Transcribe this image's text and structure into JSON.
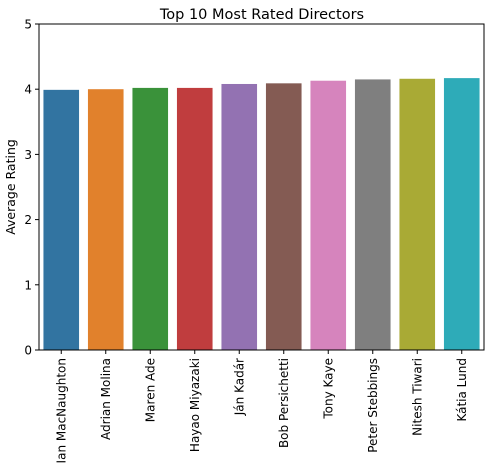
{
  "chart_data": {
    "type": "bar",
    "title": "Top 10 Most Rated Directors",
    "xlabel": "",
    "ylabel": "Average Rating",
    "ylim": [
      0,
      5
    ],
    "yticks": [
      0,
      1,
      2,
      3,
      4,
      5
    ],
    "grid": false,
    "categories": [
      "Ian MacNaughton",
      "Adrian Molina",
      "Maren Ade",
      "Hayao Miyazaki",
      "Ján Kadár",
      "Bob Persichetti",
      "Tony Kaye",
      "Peter Stebbings",
      "Nitesh Tiwari",
      "Kátia Lund"
    ],
    "values": [
      3.99,
      4.0,
      4.02,
      4.02,
      4.08,
      4.09,
      4.13,
      4.15,
      4.16,
      4.17
    ],
    "colors": [
      "#3274a1",
      "#e1812c",
      "#3a923a",
      "#c03d3e",
      "#9372b2",
      "#845b53",
      "#d684bd",
      "#7f7f7f",
      "#a9aa35",
      "#2eabb8"
    ]
  }
}
